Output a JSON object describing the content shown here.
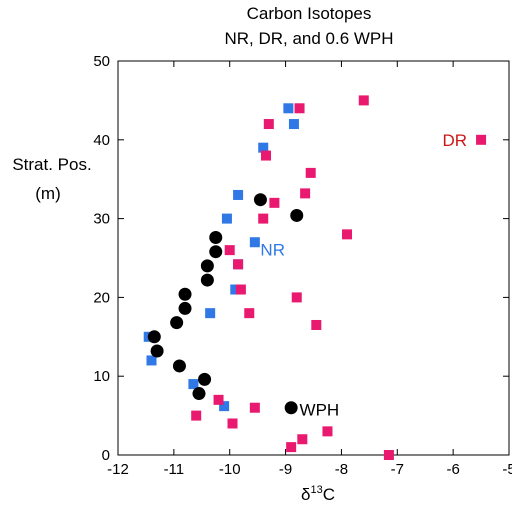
{
  "chart_data": {
    "type": "scatter",
    "title_lines": [
      "Carbon Isotopes",
      "NR, DR, and 0.6 WPH"
    ],
    "xlabel": "δ13C",
    "xlabel_base": "δ",
    "xlabel_sup": "13",
    "xlabel_tail": "C",
    "ylabel_lines": [
      "Strat. Pos.",
      "(m)"
    ],
    "xlim": [
      -12,
      -5
    ],
    "ylim": [
      0,
      50
    ],
    "xticks": [
      -12,
      -11,
      -10,
      -9,
      -8,
      -7,
      -6,
      -5
    ],
    "yticks": [
      0,
      10,
      20,
      30,
      40,
      50
    ],
    "grid": false,
    "series": [
      {
        "name": "NR",
        "color": "#2f78e6",
        "marker": "square",
        "points": [
          {
            "x": -11.45,
            "y": 15.0
          },
          {
            "x": -11.4,
            "y": 12.0
          },
          {
            "x": -10.65,
            "y": 9.0
          },
          {
            "x": -10.1,
            "y": 6.2
          },
          {
            "x": -10.35,
            "y": 18.0
          },
          {
            "x": -9.9,
            "y": 21.0
          },
          {
            "x": -9.85,
            "y": 24.2
          },
          {
            "x": -9.55,
            "y": 27.0
          },
          {
            "x": -10.05,
            "y": 30.0
          },
          {
            "x": -9.85,
            "y": 33.0
          },
          {
            "x": -9.4,
            "y": 39.0
          },
          {
            "x": -8.95,
            "y": 44.0
          },
          {
            "x": -8.85,
            "y": 42.0
          }
        ]
      },
      {
        "name": "DR",
        "color": "#e8196e",
        "marker": "square",
        "points": [
          {
            "x": -5.5,
            "y": 40.0
          },
          {
            "x": -7.6,
            "y": 45.0
          },
          {
            "x": -8.75,
            "y": 44.0
          },
          {
            "x": -9.3,
            "y": 42.0
          },
          {
            "x": -9.35,
            "y": 38.0
          },
          {
            "x": -8.55,
            "y": 35.8
          },
          {
            "x": -8.65,
            "y": 33.2
          },
          {
            "x": -9.2,
            "y": 32.0
          },
          {
            "x": -9.4,
            "y": 30.0
          },
          {
            "x": -7.9,
            "y": 28.0
          },
          {
            "x": -10.0,
            "y": 26.0
          },
          {
            "x": -9.85,
            "y": 24.2
          },
          {
            "x": -9.8,
            "y": 21.0
          },
          {
            "x": -9.65,
            "y": 18.0
          },
          {
            "x": -8.8,
            "y": 20.0
          },
          {
            "x": -8.45,
            "y": 16.5
          },
          {
            "x": -10.2,
            "y": 7.0
          },
          {
            "x": -9.55,
            "y": 6.0
          },
          {
            "x": -10.6,
            "y": 5.0
          },
          {
            "x": -9.95,
            "y": 4.0
          },
          {
            "x": -8.25,
            "y": 3.0
          },
          {
            "x": -8.7,
            "y": 2.0
          },
          {
            "x": -8.9,
            "y": 1.0
          },
          {
            "x": -7.15,
            "y": 0.0
          }
        ]
      },
      {
        "name": "WPH",
        "color": "#000000",
        "marker": "circle",
        "points": [
          {
            "x": -11.35,
            "y": 15.0
          },
          {
            "x": -11.3,
            "y": 13.2
          },
          {
            "x": -10.9,
            "y": 11.3
          },
          {
            "x": -10.45,
            "y": 9.6
          },
          {
            "x": -10.55,
            "y": 7.8
          },
          {
            "x": -8.9,
            "y": 6.0
          },
          {
            "x": -10.95,
            "y": 16.8
          },
          {
            "x": -10.8,
            "y": 18.6
          },
          {
            "x": -10.8,
            "y": 20.4
          },
          {
            "x": -10.4,
            "y": 22.2
          },
          {
            "x": -10.4,
            "y": 24.0
          },
          {
            "x": -10.25,
            "y": 25.8
          },
          {
            "x": -10.25,
            "y": 27.6
          },
          {
            "x": -9.45,
            "y": 32.4
          },
          {
            "x": -8.8,
            "y": 30.4
          }
        ]
      }
    ],
    "annotations": [
      {
        "text": "DR",
        "x": -5.75,
        "y": 40.0,
        "color": "#cc1616",
        "anchor": "end"
      },
      {
        "text": "NR",
        "x": -9.45,
        "y": 26.1,
        "color": "#2f78e6",
        "anchor": "start"
      },
      {
        "text": "WPH",
        "x": -8.75,
        "y": 5.8,
        "color": "#000000",
        "anchor": "start"
      }
    ]
  }
}
